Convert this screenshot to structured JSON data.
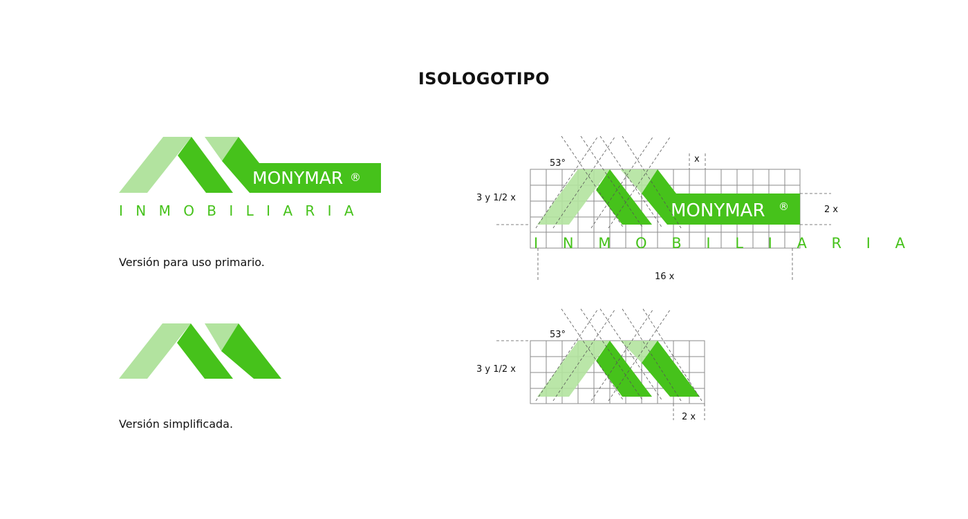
{
  "title": "ISOLOGOTIPO",
  "colors": {
    "dark_green": "#46c21b",
    "light_green": "#b2e39f",
    "grid": "#8a8a8a",
    "guide": "#555555"
  },
  "primary": {
    "brand": "MONYMAR",
    "registered": "®",
    "subtitle": "I N M O B I L I A R I A",
    "caption": "Versión para uso primario.",
    "measurements": {
      "angle": "53°",
      "unit": "x",
      "height": "3 y 1/2 x",
      "banner_height": "2 x",
      "width": "16 x"
    }
  },
  "simplified": {
    "caption": "Versión simplificada.",
    "measurements": {
      "angle": "53°",
      "height": "3 y 1/2 x",
      "width": "2 x"
    }
  }
}
